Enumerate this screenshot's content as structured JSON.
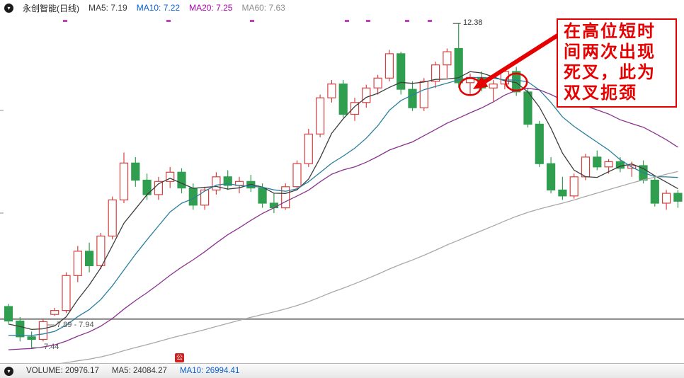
{
  "header": {
    "title": "永创智能(日线)",
    "ma5": "MA5: 7.19",
    "ma10": "MA10: 7.22",
    "ma20": "MA20: 7.25",
    "ma60": "MA60: 7.63"
  },
  "footer": {
    "volume": "VOLUME: 20976.17",
    "ma5": "MA5: 24084.27",
    "ma10": "MA10: 26994.41"
  },
  "labels": {
    "peak": "12.38",
    "gap": "7.89 - 7.94",
    "low": "7.44"
  },
  "annotation": {
    "lines": [
      "在高位短时",
      "间两次出现",
      "死叉，此为",
      "双叉扼颈"
    ]
  },
  "event_badge": "公",
  "colors": {
    "ma5_text": "#3a3a3a",
    "ma10_text": "#0a5fd0",
    "ma20_text": "#a800a8",
    "ma60_text": "#8c8c8c",
    "volume_text": "#333333",
    "annotation": "#e60000",
    "badge_bg": "#cf2020",
    "up": "#d84040",
    "down": "#2f9e4e",
    "marker": "#c23cc2"
  },
  "chart_data": {
    "type": "candlestick",
    "title": "永创智能(日线)",
    "legend": [
      "MA5: 7.19",
      "MA10: 7.22",
      "MA20: 7.25",
      "MA60: 7.63"
    ],
    "ylim": [
      7.22,
      12.5
    ],
    "grid": false,
    "ohlc_columns": [
      "open",
      "high",
      "low",
      "close"
    ],
    "candles": [
      [
        8.08,
        8.12,
        7.82,
        7.86
      ],
      [
        7.86,
        7.92,
        7.55,
        7.62
      ],
      [
        7.62,
        7.7,
        7.44,
        7.58
      ],
      [
        7.58,
        7.89,
        7.55,
        7.85
      ],
      [
        7.96,
        8.06,
        7.94,
        8.02
      ],
      [
        8.02,
        8.6,
        7.98,
        8.55
      ],
      [
        8.55,
        9.0,
        8.45,
        8.92
      ],
      [
        8.92,
        9.05,
        8.6,
        8.7
      ],
      [
        8.7,
        9.2,
        8.65,
        9.15
      ],
      [
        9.15,
        9.75,
        9.1,
        9.7
      ],
      [
        9.7,
        10.42,
        9.65,
        10.26
      ],
      [
        10.26,
        10.35,
        9.9,
        10.0
      ],
      [
        10.0,
        10.1,
        9.7,
        9.78
      ],
      [
        9.78,
        10.05,
        9.7,
        9.98
      ],
      [
        9.98,
        10.2,
        9.88,
        10.12
      ],
      [
        10.12,
        10.18,
        9.8,
        9.88
      ],
      [
        9.88,
        9.95,
        9.55,
        9.62
      ],
      [
        9.62,
        9.9,
        9.55,
        9.85
      ],
      [
        9.85,
        10.12,
        9.78,
        10.05
      ],
      [
        10.05,
        10.15,
        9.85,
        9.92
      ],
      [
        9.92,
        10.05,
        9.8,
        9.98
      ],
      [
        9.98,
        10.08,
        9.82,
        9.88
      ],
      [
        9.88,
        9.95,
        9.58,
        9.65
      ],
      [
        9.65,
        9.8,
        9.5,
        9.58
      ],
      [
        9.58,
        9.95,
        9.55,
        9.9
      ],
      [
        9.9,
        10.3,
        9.85,
        10.25
      ],
      [
        10.25,
        10.78,
        10.2,
        10.7
      ],
      [
        10.7,
        11.3,
        10.65,
        11.25
      ],
      [
        11.25,
        11.52,
        11.18,
        11.46
      ],
      [
        11.46,
        11.52,
        10.95,
        11.0
      ],
      [
        11.0,
        11.25,
        10.9,
        11.18
      ],
      [
        11.18,
        11.45,
        11.1,
        11.4
      ],
      [
        11.4,
        11.6,
        11.3,
        11.55
      ],
      [
        11.55,
        11.98,
        11.5,
        11.92
      ],
      [
        11.92,
        11.95,
        11.3,
        11.38
      ],
      [
        11.38,
        11.5,
        11.05,
        11.1
      ],
      [
        11.1,
        11.55,
        11.05,
        11.5
      ],
      [
        11.5,
        11.8,
        11.4,
        11.75
      ],
      [
        11.75,
        12.0,
        11.55,
        11.95
      ],
      [
        12.0,
        12.38,
        11.4,
        11.48
      ],
      [
        11.48,
        11.62,
        11.3,
        11.56
      ],
      [
        11.56,
        11.65,
        11.35,
        11.4
      ],
      [
        11.4,
        11.52,
        11.2,
        11.46
      ],
      [
        11.46,
        11.7,
        11.38,
        11.65
      ],
      [
        11.65,
        11.72,
        11.28,
        11.34
      ],
      [
        11.34,
        11.4,
        10.8,
        10.85
      ],
      [
        10.85,
        10.9,
        10.2,
        10.25
      ],
      [
        10.25,
        10.35,
        9.8,
        9.85
      ],
      [
        9.85,
        10.05,
        9.7,
        9.76
      ],
      [
        9.76,
        10.1,
        9.72,
        10.05
      ],
      [
        10.05,
        10.4,
        10.0,
        10.35
      ],
      [
        10.35,
        10.45,
        10.15,
        10.2
      ],
      [
        10.2,
        10.32,
        10.1,
        10.28
      ],
      [
        10.28,
        10.35,
        10.12,
        10.18
      ],
      [
        10.18,
        10.28,
        10.05,
        10.22
      ],
      [
        10.22,
        10.3,
        9.95,
        10.0
      ],
      [
        10.0,
        10.05,
        9.6,
        9.65
      ],
      [
        9.65,
        9.85,
        9.55,
        9.8
      ],
      [
        9.8,
        9.85,
        9.58,
        9.68
      ]
    ],
    "ma": [
      {
        "name": "MA5",
        "window": 5,
        "seed": 7.8,
        "color": "#3d3d3d"
      },
      {
        "name": "MA10",
        "window": 10,
        "seed": 7.62,
        "color": "#2a7f9e"
      },
      {
        "name": "MA20",
        "window": 20,
        "seed": 7.4,
        "color": "#8a3390"
      },
      {
        "name": "MA60",
        "window": 60,
        "seed": 7.15,
        "color": "#a8a8a8"
      }
    ],
    "gap_line_price": 7.89,
    "peak": {
      "index": 39,
      "price": 12.38,
      "label": "12.38"
    },
    "gap_label": {
      "price_low": 7.89,
      "price_high": 7.94
    },
    "low_label": {
      "price": 7.44
    },
    "circles": [
      {
        "index": 40,
        "price": 11.42
      },
      {
        "index": 44,
        "price": 11.49
      }
    ],
    "top_markers_x": [
      92,
      238,
      356,
      490,
      520,
      575,
      607
    ]
  }
}
